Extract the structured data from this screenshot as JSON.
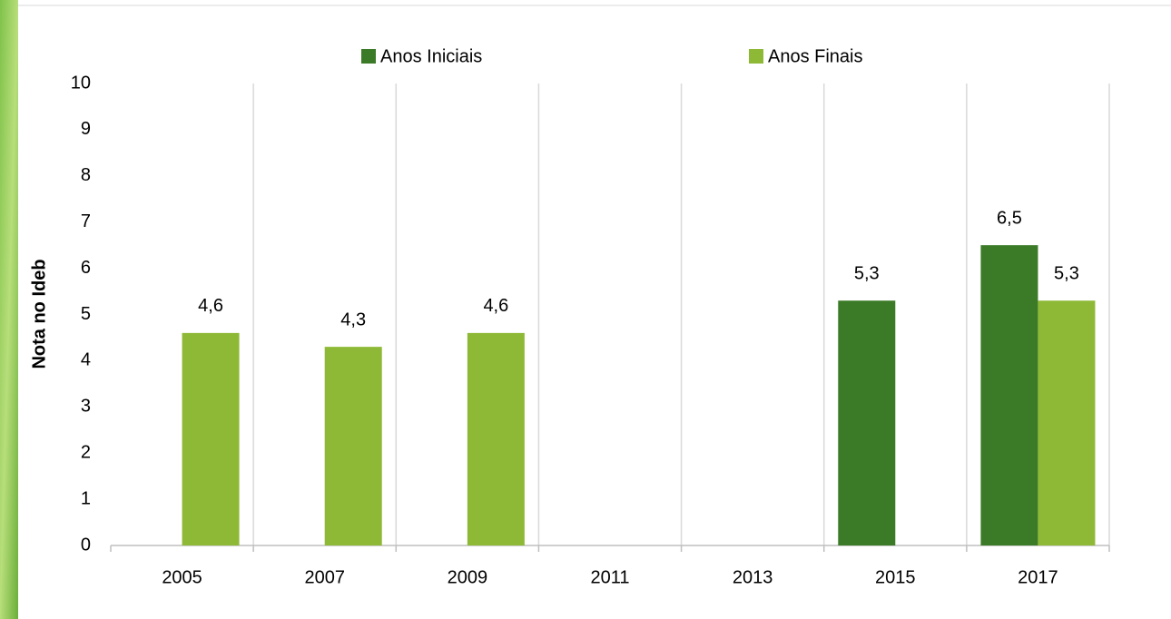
{
  "chart_data": {
    "type": "bar",
    "y_label": "Nota no Ideb",
    "categories": [
      "2005",
      "2007",
      "2009",
      "2011",
      "2013",
      "2015",
      "2017"
    ],
    "series": [
      {
        "name": "Anos Iniciais",
        "color": "#3b7a26",
        "values": [
          null,
          null,
          null,
          null,
          null,
          5.3,
          6.5
        ],
        "value_labels": [
          null,
          null,
          null,
          null,
          null,
          "5,3",
          "6,5"
        ]
      },
      {
        "name": "Anos Finais",
        "color": "#8db936",
        "values": [
          4.6,
          4.3,
          4.6,
          null,
          null,
          null,
          5.3
        ],
        "value_labels": [
          "4,6",
          "4,3",
          "4,6",
          null,
          null,
          null,
          "5,3"
        ]
      }
    ],
    "ylim": [
      0,
      10
    ],
    "yticks": [
      0,
      1,
      2,
      3,
      4,
      5,
      6,
      7,
      8,
      9,
      10
    ],
    "grid": "x",
    "legend": "top"
  }
}
